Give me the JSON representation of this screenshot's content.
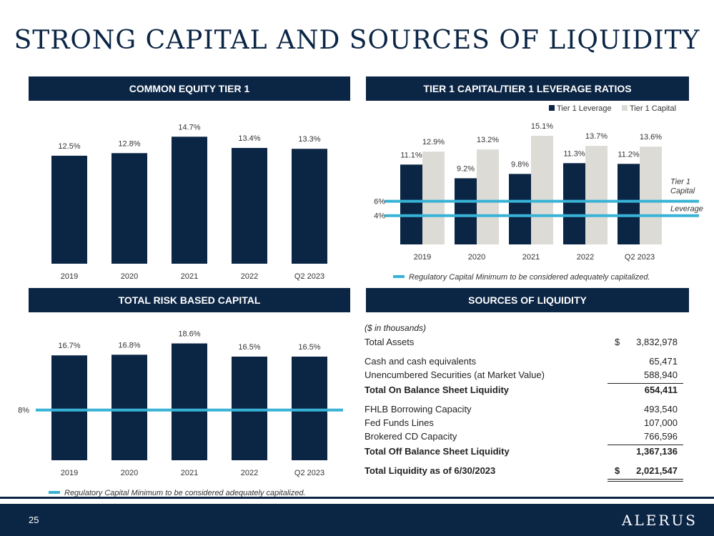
{
  "title": "STRONG CAPITAL AND SOURCES OF LIQUIDITY",
  "colors": {
    "navy": "#0b2545",
    "grey": "#dcdbd6",
    "teal": "#38b3d6"
  },
  "chart_data": [
    {
      "type": "bar",
      "title": "COMMON EQUITY TIER 1",
      "categories": [
        "2019",
        "2020",
        "2021",
        "2022",
        "Q2 2023"
      ],
      "values": [
        12.5,
        12.8,
        14.7,
        13.4,
        13.3
      ],
      "value_labels": [
        "12.5%",
        "12.8%",
        "14.7%",
        "13.4%",
        "13.3%"
      ],
      "ylim": [
        0,
        15.8
      ]
    },
    {
      "type": "bar",
      "title": "TIER 1 CAPITAL/TIER 1 LEVERAGE RATIOS",
      "categories": [
        "2019",
        "2020",
        "2021",
        "2022",
        "Q2 2023"
      ],
      "series": [
        {
          "name": "Tier 1 Leverage",
          "values": [
            11.1,
            9.2,
            9.8,
            11.3,
            11.2
          ],
          "labels": [
            "11.1%",
            "9.2%",
            "9.8%",
            "11.3%",
            "11.2%"
          ],
          "color": "#0b2545"
        },
        {
          "name": "Tier 1 Capital",
          "values": [
            12.9,
            13.2,
            15.1,
            13.7,
            13.6
          ],
          "labels": [
            "12.9%",
            "13.2%",
            "15.1%",
            "13.7%",
            "13.6%"
          ],
          "color": "#dcdbd6"
        }
      ],
      "reference_lines": [
        {
          "value": 6,
          "label": "6%",
          "side_label": "Tier 1 Capital"
        },
        {
          "value": 4,
          "label": "4%",
          "side_label": "Leverage"
        }
      ],
      "ylim": [
        0,
        15.8
      ],
      "legend_position": "top-right",
      "footnote": "Regulatory Capital Minimum to be considered adequately capitalized."
    },
    {
      "type": "bar",
      "title": "TOTAL RISK BASED CAPITAL",
      "categories": [
        "2019",
        "2020",
        "2021",
        "2022",
        "Q2 2023"
      ],
      "values": [
        16.7,
        16.8,
        18.6,
        16.5,
        16.5
      ],
      "value_labels": [
        "16.7%",
        "16.8%",
        "18.6%",
        "16.5%",
        "16.5%"
      ],
      "reference_lines": [
        {
          "value": 8,
          "label": "8%"
        }
      ],
      "ylim": [
        0,
        19.8
      ],
      "footnote": "Regulatory Capital Minimum to be considered adequately capitalized."
    }
  ],
  "liquidity": {
    "title": "SOURCES OF LIQUIDITY",
    "units": "($ in thousands)",
    "total_assets": {
      "label": "Total Assets",
      "dollar": "$",
      "value": "3,832,978"
    },
    "on_balance": [
      {
        "label": "Cash and cash equivalents",
        "value": "65,471"
      },
      {
        "label": "Unencumbered Securities (at Market Value)",
        "value": "588,940"
      }
    ],
    "total_on": {
      "label": "Total On Balance Sheet Liquidity",
      "value": "654,411"
    },
    "off_balance": [
      {
        "label": "FHLB Borrowing Capacity",
        "value": "493,540"
      },
      {
        "label": "Fed Funds Lines",
        "value": "107,000"
      },
      {
        "label": "Brokered CD Capacity",
        "value": "766,596"
      }
    ],
    "total_off": {
      "label": "Total Off Balance Sheet Liquidity",
      "value": "1,367,136"
    },
    "total_liquidity": {
      "label": "Total Liquidity as of 6/30/2023",
      "dollar": "$",
      "value": "2,021,547"
    }
  },
  "footer": {
    "page": "25",
    "logo": "ALERUS"
  }
}
